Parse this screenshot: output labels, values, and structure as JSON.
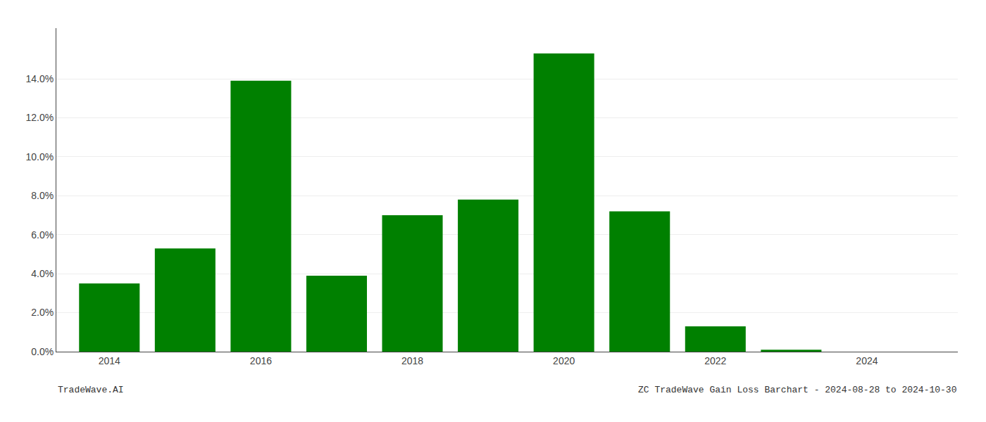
{
  "chart_data": {
    "type": "bar",
    "x": [
      2014,
      2015,
      2016,
      2017,
      2018,
      2019,
      2020,
      2021,
      2022,
      2023,
      2024
    ],
    "values": [
      0.035,
      0.053,
      0.139,
      0.039,
      0.07,
      0.078,
      0.153,
      0.072,
      0.013,
      0.001,
      0.0
    ],
    "color": "#008000",
    "xlim": [
      2013.3,
      2025.2
    ],
    "xticks": [
      2014,
      2016,
      2018,
      2020,
      2022,
      2024
    ],
    "ylim": [
      0,
      0.166
    ],
    "yticks": [
      {
        "value": 0.0,
        "label": "0.0%"
      },
      {
        "value": 0.02,
        "label": "2.0%"
      },
      {
        "value": 0.04,
        "label": "4.0%"
      },
      {
        "value": 0.06,
        "label": "6.0%"
      },
      {
        "value": 0.08,
        "label": "8.0%"
      },
      {
        "value": 0.1,
        "label": "10.0%"
      },
      {
        "value": 0.12,
        "label": "12.0%"
      },
      {
        "value": 0.14,
        "label": "14.0%"
      }
    ],
    "grid": true,
    "annotations": [
      "TradeWave.AI",
      "ZC TradeWave Gain Loss Barchart - 2024-08-28 to 2024-10-30"
    ]
  }
}
